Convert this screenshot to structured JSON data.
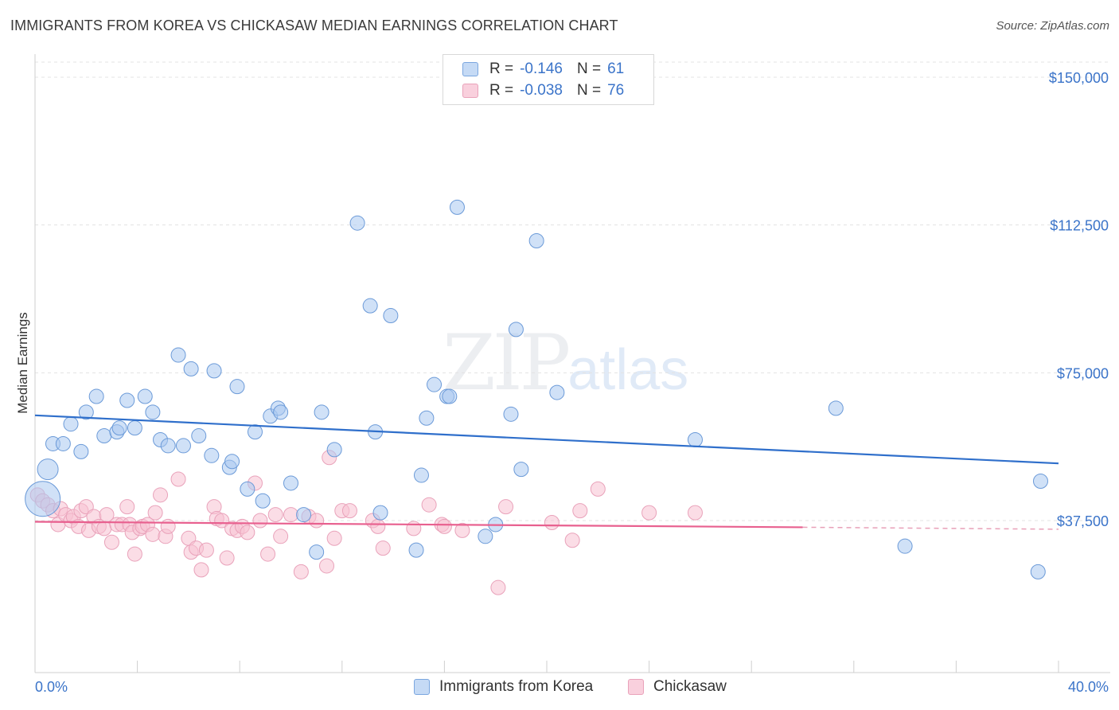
{
  "header": {
    "title": "IMMIGRANTS FROM KOREA VS CHICKASAW MEDIAN EARNINGS CORRELATION CHART",
    "source": "Source: ZipAtlas.com"
  },
  "watermark": {
    "zip": "ZIP",
    "atlas": "atlas"
  },
  "legend": {
    "rows": [
      {
        "r_label": "R =",
        "r_value": "-0.146",
        "n_label": "N =",
        "n_value": "61",
        "color": "#a9c8f0",
        "border": "#6b9ad8"
      },
      {
        "r_label": "R =",
        "r_value": "-0.038",
        "n_label": "N =",
        "n_value": "76",
        "color": "#f7c1d2",
        "border": "#e58fac"
      }
    ]
  },
  "bottom_legend": {
    "items": [
      {
        "label": "Immigrants from Korea",
        "color": "#c5daf5",
        "border": "#7aa6df"
      },
      {
        "label": "Chickasaw",
        "color": "#f9d0dd",
        "border": "#e9a2ba"
      }
    ]
  },
  "chart_data": {
    "type": "scatter",
    "title": "IMMIGRANTS FROM KOREA VS CHICKASAW MEDIAN EARNINGS CORRELATION CHART",
    "xlabel": "",
    "ylabel": "Median Earnings",
    "xlim": [
      0,
      40
    ],
    "ylim": [
      15000,
      153000
    ],
    "x_tick_labels": [
      "0.0%",
      "40.0%"
    ],
    "y_ticks": [
      37500,
      75000,
      112500,
      150000
    ],
    "y_tick_labels": [
      "$37,500",
      "$75,000",
      "$112,500",
      "$150,000"
    ],
    "grid": "horizontal dashed",
    "legend_position": "top-center",
    "colors": {
      "korea": "#3b74c9",
      "korea_fill": "#a9c8f0",
      "chickasaw": "#e8608f",
      "chickasaw_fill": "#f7c1d2"
    },
    "series": [
      {
        "name": "Immigrants from Korea",
        "r": -0.146,
        "n": 61,
        "trend": {
          "x0": 0,
          "y0": 64200,
          "x1": 40,
          "y1": 52000
        },
        "points": [
          [
            0.3,
            43000
          ],
          [
            0.5,
            50500
          ],
          [
            0.7,
            57000
          ],
          [
            1.1,
            57000
          ],
          [
            1.4,
            62000
          ],
          [
            1.8,
            55000
          ],
          [
            2.0,
            65000
          ],
          [
            2.4,
            69000
          ],
          [
            2.7,
            59000
          ],
          [
            3.2,
            60000
          ],
          [
            3.3,
            61000
          ],
          [
            3.6,
            68000
          ],
          [
            3.9,
            61000
          ],
          [
            4.3,
            69000
          ],
          [
            4.6,
            65000
          ],
          [
            4.9,
            58000
          ],
          [
            5.2,
            56500
          ],
          [
            5.6,
            79500
          ],
          [
            5.8,
            56500
          ],
          [
            6.1,
            76000
          ],
          [
            6.4,
            59000
          ],
          [
            6.9,
            54000
          ],
          [
            7.0,
            75500
          ],
          [
            7.6,
            51000
          ],
          [
            7.7,
            52500
          ],
          [
            7.9,
            71500
          ],
          [
            8.3,
            45500
          ],
          [
            8.6,
            60000
          ],
          [
            8.9,
            42500
          ],
          [
            9.2,
            64000
          ],
          [
            9.5,
            66000
          ],
          [
            9.6,
            65000
          ],
          [
            10.0,
            47000
          ],
          [
            10.5,
            39000
          ],
          [
            11.0,
            29500
          ],
          [
            11.2,
            65000
          ],
          [
            11.7,
            55500
          ],
          [
            12.6,
            113000
          ],
          [
            13.1,
            92000
          ],
          [
            13.3,
            60000
          ],
          [
            13.5,
            39500
          ],
          [
            13.9,
            89500
          ],
          [
            14.9,
            30000
          ],
          [
            15.1,
            49000
          ],
          [
            15.3,
            63500
          ],
          [
            15.6,
            72000
          ],
          [
            16.1,
            69000
          ],
          [
            16.2,
            69000
          ],
          [
            16.5,
            117000
          ],
          [
            17.6,
            33500
          ],
          [
            18.0,
            36500
          ],
          [
            18.6,
            64500
          ],
          [
            18.8,
            86000
          ],
          [
            19.0,
            50500
          ],
          [
            19.6,
            108500
          ],
          [
            20.4,
            70000
          ],
          [
            25.8,
            58000
          ],
          [
            31.3,
            66000
          ],
          [
            34.0,
            31000
          ],
          [
            39.3,
            47500
          ],
          [
            39.2,
            24500
          ]
        ],
        "radius": [
          22,
          13,
          9,
          9,
          9,
          9,
          9,
          9,
          9,
          9,
          9,
          9,
          9,
          9,
          9,
          9,
          9,
          9,
          9,
          9,
          9,
          9,
          9,
          9,
          9,
          9,
          9,
          9,
          9,
          9,
          9,
          9,
          9,
          9,
          9,
          9,
          9,
          9,
          9,
          9,
          9,
          9,
          9,
          9,
          9,
          9,
          9,
          9,
          9,
          9,
          9,
          9,
          9,
          9,
          9,
          9,
          9,
          9,
          9,
          9,
          9
        ]
      },
      {
        "name": "Chickasaw",
        "r": -0.038,
        "n": 76,
        "trend": {
          "x0": 0,
          "y0": 37200,
          "x1": 30,
          "y1": 35800,
          "dash_to_x": 40,
          "dash_to_y": 35300
        },
        "points": [
          [
            0.1,
            44000
          ],
          [
            0.3,
            42500
          ],
          [
            0.5,
            41500
          ],
          [
            0.7,
            40000
          ],
          [
            0.9,
            36500
          ],
          [
            1.0,
            40500
          ],
          [
            1.2,
            39000
          ],
          [
            1.4,
            37500
          ],
          [
            1.5,
            38500
          ],
          [
            1.7,
            36000
          ],
          [
            1.8,
            40000
          ],
          [
            2.0,
            41000
          ],
          [
            2.1,
            35000
          ],
          [
            2.3,
            38500
          ],
          [
            2.5,
            36000
          ],
          [
            2.7,
            35500
          ],
          [
            2.8,
            39000
          ],
          [
            3.0,
            32000
          ],
          [
            3.2,
            36500
          ],
          [
            3.4,
            36500
          ],
          [
            3.6,
            41000
          ],
          [
            3.7,
            36500
          ],
          [
            3.8,
            34500
          ],
          [
            3.9,
            29000
          ],
          [
            4.1,
            35500
          ],
          [
            4.2,
            36000
          ],
          [
            4.4,
            36500
          ],
          [
            4.6,
            34000
          ],
          [
            4.7,
            39500
          ],
          [
            4.9,
            44000
          ],
          [
            5.1,
            33500
          ],
          [
            5.2,
            36000
          ],
          [
            5.6,
            48000
          ],
          [
            6.0,
            33000
          ],
          [
            6.1,
            29500
          ],
          [
            6.3,
            30500
          ],
          [
            6.5,
            25000
          ],
          [
            6.7,
            30000
          ],
          [
            7.0,
            41000
          ],
          [
            7.1,
            38000
          ],
          [
            7.3,
            37500
          ],
          [
            7.5,
            28000
          ],
          [
            7.7,
            35500
          ],
          [
            7.9,
            35000
          ],
          [
            8.1,
            36000
          ],
          [
            8.3,
            34500
          ],
          [
            8.6,
            47000
          ],
          [
            8.8,
            37500
          ],
          [
            9.1,
            29000
          ],
          [
            9.4,
            39000
          ],
          [
            9.6,
            33500
          ],
          [
            10.0,
            39000
          ],
          [
            10.4,
            24500
          ],
          [
            10.7,
            38500
          ],
          [
            11.0,
            37500
          ],
          [
            11.4,
            26000
          ],
          [
            11.7,
            33000
          ],
          [
            12.0,
            40000
          ],
          [
            12.3,
            40000
          ],
          [
            13.2,
            37500
          ],
          [
            13.4,
            36000
          ],
          [
            13.6,
            30500
          ],
          [
            14.8,
            35500
          ],
          [
            15.4,
            41500
          ],
          [
            15.9,
            36500
          ],
          [
            16.0,
            36000
          ],
          [
            16.7,
            35000
          ],
          [
            18.1,
            20500
          ],
          [
            18.4,
            41000
          ],
          [
            20.2,
            37000
          ],
          [
            21.0,
            32500
          ],
          [
            21.3,
            40000
          ],
          [
            22.0,
            45500
          ],
          [
            24.0,
            39500
          ],
          [
            25.8,
            39500
          ],
          [
            11.5,
            53500
          ]
        ],
        "radius": 9
      }
    ]
  }
}
